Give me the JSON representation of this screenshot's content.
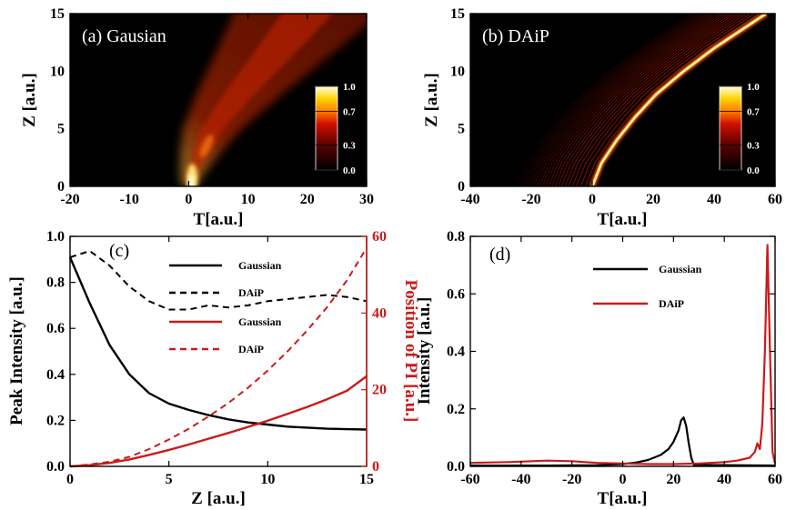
{
  "panels": [
    {
      "id": "a",
      "label": "(a)   Gausian",
      "type": "heatmap",
      "xlabel": "T[a.u.]",
      "ylabel": "Z [a.u.]",
      "xlim": [
        -20,
        30
      ],
      "ylim": [
        0,
        15
      ],
      "xticks": [
        "-20",
        "-10",
        "0",
        "10",
        "20",
        "30"
      ],
      "yticks": [
        "0",
        "5",
        "10",
        "15"
      ],
      "colorbar_ticks": [
        "1.0",
        "0.7",
        "0.3",
        "0.0"
      ]
    },
    {
      "id": "b",
      "label": "(b)   DAiP",
      "type": "heatmap",
      "xlabel": "T[a.u.]",
      "ylabel": "Z [a.u.]",
      "xlim": [
        -40,
        60
      ],
      "ylim": [
        0,
        15
      ],
      "xticks": [
        "-40",
        "-20",
        "0",
        "20",
        "40",
        "60"
      ],
      "yticks": [
        "0",
        "5",
        "10",
        "15"
      ],
      "colorbar_ticks": [
        "1.0",
        "0.7",
        "0.3",
        "0.0"
      ]
    },
    {
      "id": "c",
      "label": "(c)",
      "xlabel": "Z [a.u.]",
      "ylabel": "Peak Intensity [a.u.]",
      "ylabel_right": "Position of PI [a.u.]",
      "xticks": [
        "0",
        "5",
        "10",
        "15"
      ],
      "yticks": [
        "0.0",
        "0.2",
        "0.4",
        "0.6",
        "0.8",
        "1.0"
      ],
      "yticks_right": [
        "0",
        "20",
        "40",
        "60"
      ],
      "legend": [
        "Gaussian",
        "DAiP",
        "Gaussian",
        "DAiP"
      ]
    },
    {
      "id": "d",
      "label": "(d)",
      "xlabel": "T[a.u.]",
      "ylabel": "Intensity [a.u.]",
      "xticks": [
        "-60",
        "-40",
        "-20",
        "0",
        "20",
        "40",
        "60"
      ],
      "yticks": [
        "0.0",
        "0.2",
        "0.4",
        "0.6",
        "0.8"
      ],
      "legend": [
        "Gaussian",
        "DAiP"
      ]
    }
  ],
  "colors": {
    "black": "#000000",
    "red": "#cc1a1a",
    "heat_bg": "#000000"
  },
  "chart_data": [
    {
      "type": "heatmap",
      "panel": "a",
      "x_range": [
        -20,
        30
      ],
      "y_range": [
        0,
        15
      ],
      "colorscale": "hot",
      "cbar_range": [
        0,
        1
      ],
      "beam_center": {
        "z": [
          0,
          1,
          3,
          5,
          8,
          11,
          15
        ],
        "t": [
          0,
          0.5,
          2,
          4,
          8.5,
          13.5,
          20
        ]
      },
      "beam_peak": {
        "z": [
          0,
          1,
          3,
          5,
          8,
          11,
          15
        ],
        "intensity": [
          1.0,
          0.9,
          0.75,
          0.6,
          0.42,
          0.32,
          0.26
        ]
      }
    },
    {
      "type": "heatmap",
      "panel": "b",
      "x_range": [
        -40,
        60
      ],
      "y_range": [
        0,
        15
      ],
      "colorscale": "hot",
      "cbar_range": [
        0,
        1
      ],
      "main_lobe": {
        "z": [
          0,
          2,
          4,
          6,
          8,
          10,
          12,
          15
        ],
        "t": [
          0,
          3,
          8,
          14,
          21,
          30,
          40,
          57
        ]
      }
    },
    {
      "type": "line",
      "panel": "c",
      "x": [
        0,
        1,
        2,
        3,
        4,
        5,
        6,
        7,
        8,
        9,
        10,
        11,
        12,
        13,
        14,
        15
      ],
      "series": [
        {
          "name": "Gaussian",
          "axis": "left",
          "style": "solid",
          "color": "#000000",
          "values": [
            1.0,
            0.78,
            0.58,
            0.44,
            0.35,
            0.3,
            0.27,
            0.245,
            0.225,
            0.21,
            0.2,
            0.19,
            0.185,
            0.18,
            0.178,
            0.176
          ]
        },
        {
          "name": "DAiP",
          "axis": "left",
          "style": "dashed",
          "color": "#000000",
          "values": [
            1.0,
            1.03,
            0.96,
            0.86,
            0.79,
            0.75,
            0.75,
            0.77,
            0.76,
            0.77,
            0.79,
            0.8,
            0.81,
            0.82,
            0.81,
            0.79
          ]
        },
        {
          "name": "Gaussian",
          "axis": "right",
          "style": "solid",
          "color": "#cc1a1a",
          "values": [
            0,
            0.3,
            0.9,
            1.8,
            3.0,
            4.3,
            5.7,
            7.2,
            8.7,
            10.3,
            11.9,
            13.7,
            15.5,
            17.5,
            19.7,
            23.5
          ]
        },
        {
          "name": "DAiP",
          "axis": "right",
          "style": "dashed",
          "color": "#cc1a1a",
          "values": [
            0,
            0.5,
            1.2,
            2.5,
            4.5,
            7.0,
            9.8,
            13.0,
            16.5,
            20.5,
            25.0,
            30.0,
            35.5,
            41.5,
            48.5,
            57
          ]
        }
      ],
      "xlim": [
        0,
        15
      ],
      "ylim": [
        0,
        1.1
      ],
      "ylim_right": [
        0,
        60
      ]
    },
    {
      "type": "line",
      "panel": "d",
      "series": [
        {
          "name": "Gaussian",
          "color": "#000000",
          "x": [
            -60,
            -30,
            -10,
            0,
            5,
            10,
            15,
            18,
            20,
            22,
            23,
            24,
            25,
            26,
            27,
            28,
            60
          ],
          "values": [
            0.003,
            0.003,
            0.004,
            0.008,
            0.013,
            0.022,
            0.04,
            0.06,
            0.085,
            0.125,
            0.16,
            0.17,
            0.14,
            0.08,
            0.03,
            0.005,
            0.003
          ]
        },
        {
          "name": "DAiP",
          "color": "#cc1a1a",
          "x": [
            -60,
            -45,
            -30,
            -20,
            -10,
            0,
            10,
            20,
            30,
            40,
            45,
            50,
            52,
            53,
            54,
            55,
            56,
            57,
            58,
            59,
            60
          ],
          "values": [
            0.012,
            0.015,
            0.02,
            0.018,
            0.012,
            0.01,
            0.008,
            0.008,
            0.01,
            0.015,
            0.02,
            0.03,
            0.05,
            0.08,
            0.06,
            0.15,
            0.4,
            0.77,
            0.4,
            0.05,
            0.01
          ]
        }
      ],
      "xlim": [
        -60,
        60
      ],
      "ylim": [
        0,
        0.8
      ]
    }
  ]
}
